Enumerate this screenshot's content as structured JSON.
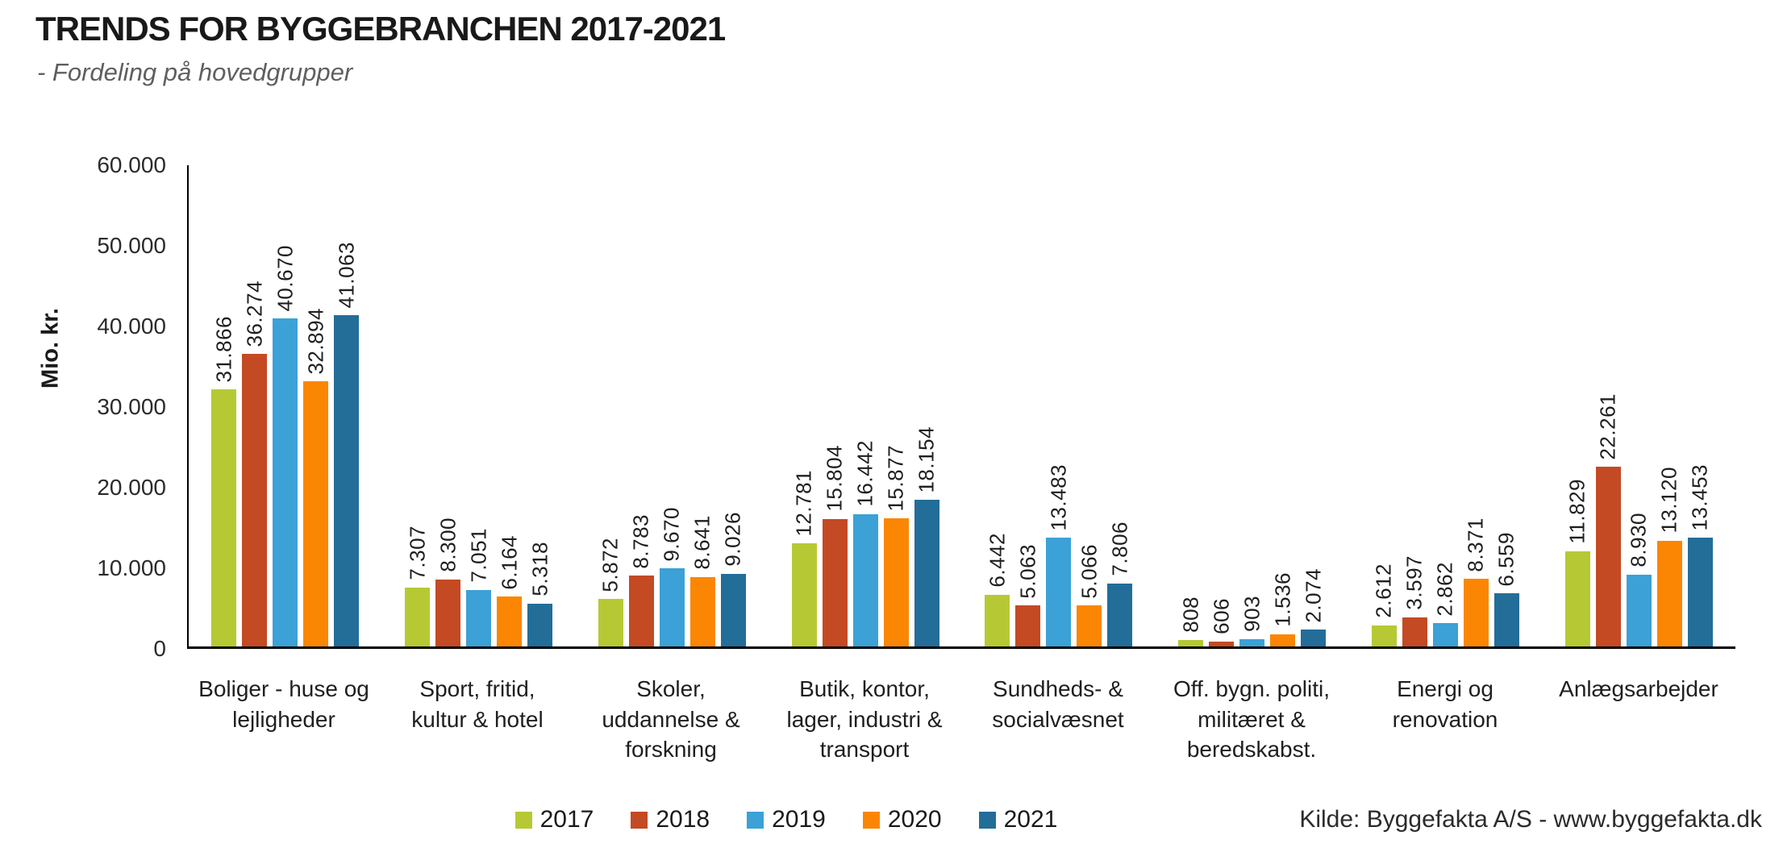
{
  "header": {
    "title": "TRENDS FOR BYGGEBRANCHEN 2017-2021",
    "subtitle": "- Fordeling på hovedgrupper"
  },
  "source": "Kilde: Byggefakta A/S - www.byggefakta.dk",
  "chart_data": {
    "type": "bar",
    "title": "TRENDS FOR BYGGEBRANCHEN 2017-2021",
    "subtitle": "- Fordeling på hovedgrupper",
    "xlabel": "",
    "ylabel": "Mio. kr.",
    "ylim": [
      0,
      60000
    ],
    "grid": false,
    "legend_position": "bottom",
    "y_ticks": [
      {
        "value": 0,
        "label": "0"
      },
      {
        "value": 10000,
        "label": "10.000"
      },
      {
        "value": 20000,
        "label": "20.000"
      },
      {
        "value": 30000,
        "label": "30.000"
      },
      {
        "value": 40000,
        "label": "40.000"
      },
      {
        "value": 50000,
        "label": "50.000"
      },
      {
        "value": 60000,
        "label": "60.000"
      }
    ],
    "categories": [
      "Boliger - huse og lejligheder",
      "Sport, fritid, kultur & hotel",
      "Skoler, uddannelse & forskning",
      "Butik, kontor, lager, industri & transport",
      "Sundheds- & socialvæsnet",
      "Off. bygn. politi, militæret & beredskabst.",
      "Energi og renovation",
      "Anlægsarbejder"
    ],
    "category_lines": [
      [
        "Boliger - huse og",
        "lejligheder"
      ],
      [
        "Sport, fritid,",
        "kultur & hotel"
      ],
      [
        "Skoler,",
        "uddannelse &",
        "forskning"
      ],
      [
        "Butik, kontor,",
        "lager, industri &",
        "transport"
      ],
      [
        "Sundheds- &",
        "socialvæsnet"
      ],
      [
        "Off. bygn. politi,",
        "militæret &",
        "beredskabst."
      ],
      [
        "Energi og",
        "renovation"
      ],
      [
        "Anlægsarbejder"
      ]
    ],
    "series": [
      {
        "name": "2017",
        "color": "#b6c934",
        "values": [
          31866,
          7307,
          5872,
          12781,
          6442,
          808,
          2612,
          11829
        ],
        "value_labels": [
          "31.866",
          "7.307",
          "5.872",
          "12.781",
          "6.442",
          "808",
          "2.612",
          "11.829"
        ]
      },
      {
        "name": "2018",
        "color": "#c44a24",
        "values": [
          36274,
          8300,
          8783,
          15804,
          5063,
          606,
          3597,
          22261
        ],
        "value_labels": [
          "36.274",
          "8.300",
          "8.783",
          "15.804",
          "5.063",
          "606",
          "3.597",
          "22.261"
        ]
      },
      {
        "name": "2019",
        "color": "#3ba1d6",
        "values": [
          40670,
          7051,
          9670,
          16442,
          13483,
          903,
          2862,
          8930
        ],
        "value_labels": [
          "40.670",
          "7.051",
          "9.670",
          "16.442",
          "13.483",
          "903",
          "2.862",
          "8.930"
        ]
      },
      {
        "name": "2020",
        "color": "#fb8604",
        "values": [
          32894,
          6164,
          8641,
          15877,
          5066,
          1536,
          8371,
          13120
        ],
        "value_labels": [
          "32.894",
          "6.164",
          "8.641",
          "15.877",
          "5.066",
          "1.536",
          "8.371",
          "13.120"
        ]
      },
      {
        "name": "2021",
        "color": "#236d99",
        "values": [
          41063,
          5318,
          9026,
          18154,
          7806,
          2074,
          6559,
          13453
        ],
        "value_labels": [
          "41.063",
          "5.318",
          "9.026",
          "18.154",
          "7.806",
          "2.074",
          "6.559",
          "13.453"
        ]
      }
    ]
  }
}
